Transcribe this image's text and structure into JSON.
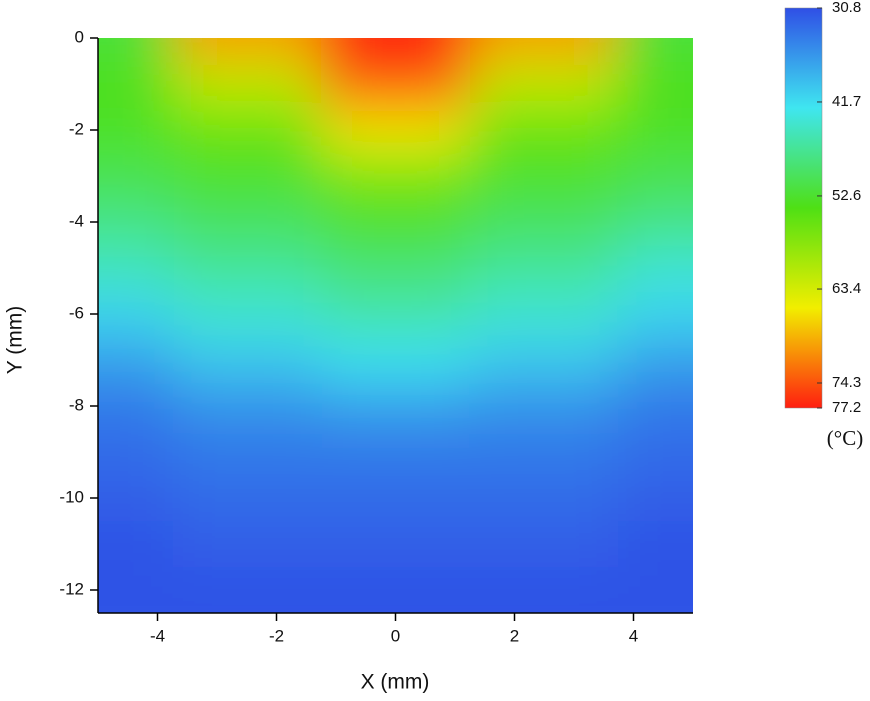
{
  "chart_data": {
    "type": "heatmap",
    "x_label": "X (mm)",
    "y_label": "Y (mm)",
    "x": [
      -5,
      -2.5,
      0,
      2.5,
      5
    ],
    "y": [
      0,
      -1,
      -2,
      -3,
      -4,
      -5,
      -6,
      -7,
      -8,
      -9,
      -10,
      -11,
      -12
    ],
    "z": [
      [
        52,
        70,
        77,
        70,
        52
      ],
      [
        54,
        62,
        74,
        62,
        54
      ],
      [
        53,
        56,
        66,
        56,
        53
      ],
      [
        51,
        53,
        57,
        53,
        51
      ],
      [
        48,
        50,
        53,
        50,
        48
      ],
      [
        45,
        47,
        49,
        47,
        44
      ],
      [
        41,
        44,
        46,
        44,
        41
      ],
      [
        37,
        40,
        42,
        40,
        37
      ],
      [
        34,
        36,
        37,
        36,
        34
      ],
      [
        33,
        34,
        34,
        34,
        33
      ],
      [
        32,
        33,
        33,
        33,
        32
      ],
      [
        31,
        32,
        32,
        32,
        31
      ],
      [
        31,
        31,
        31,
        31,
        31
      ]
    ],
    "xlim": [
      -5,
      5
    ],
    "xticks": [
      -4,
      -2,
      0,
      2,
      4
    ],
    "ylim": [
      -12.5,
      0
    ],
    "yticks": [
      -12,
      -10,
      -8,
      -6,
      -4,
      -2,
      0
    ],
    "zlim": [
      30.8,
      77.2
    ],
    "zticks": [
      30.8,
      41.7,
      52.6,
      63.4,
      74.3,
      77.2
    ],
    "colorbar_label": "(°C)",
    "colors": [
      "#2f4fe6",
      "#3fe6f0",
      "#4fe014",
      "#f2ee00",
      "#ff1e10"
    ]
  }
}
